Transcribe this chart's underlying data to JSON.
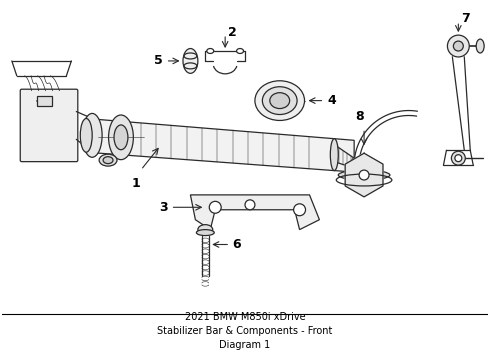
{
  "title": "2021 BMW M850i xDrive\nStabilizer Bar & Components - Front\nDiagram 1",
  "background_color": "#ffffff",
  "line_color": "#2a2a2a",
  "label_color": "#000000",
  "border_color": "#000000",
  "title_fontsize": 7.0,
  "callout_fontsize": 9,
  "fig_width": 4.9,
  "fig_height": 3.6,
  "dpi": 100
}
